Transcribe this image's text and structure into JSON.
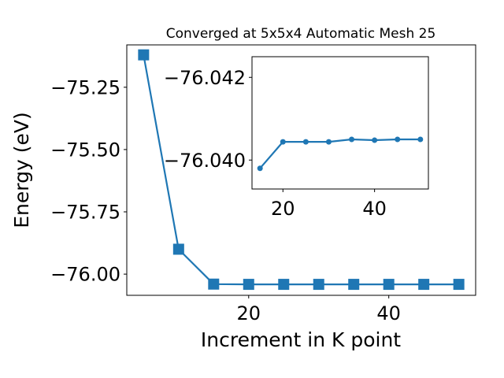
{
  "chart_data": [
    {
      "type": "line",
      "title": "Converged at 5x5x4 Automatic Mesh 25",
      "xlabel": "Increment in K point",
      "ylabel": "Energy (eV)",
      "xlim": [
        2.6,
        52.4
      ],
      "ylim": [
        -76.085,
        -75.08
      ],
      "xticks": [
        20,
        40
      ],
      "xtick_labels": [
        "20",
        "40"
      ],
      "yticks": [
        -76.0,
        -75.75,
        -75.5,
        -75.25
      ],
      "ytick_labels": [
        "−76.00",
        "−75.75",
        "−75.50",
        "−75.25"
      ],
      "grid": false,
      "series": [
        {
          "marker": "square",
          "color": "#1f77b4",
          "x": [
            5,
            10,
            15,
            20,
            25,
            30,
            35,
            40,
            45,
            50
          ],
          "y": [
            -75.12,
            -75.9,
            -76.04,
            -76.041,
            -76.041,
            -76.041,
            -76.041,
            -76.041,
            -76.041,
            -76.041
          ]
        }
      ]
    },
    {
      "type": "line",
      "title": "",
      "xlabel": "",
      "ylabel": "",
      "xlim": [
        13.25,
        51.75
      ],
      "ylim": [
        -76.0393,
        -76.0425
      ],
      "xticks": [
        20,
        40
      ],
      "xtick_labels": [
        "20",
        "40"
      ],
      "yticks": [
        -76.04,
        -76.042
      ],
      "ytick_labels": [
        "−76.040",
        "−76.042"
      ],
      "grid": false,
      "series": [
        {
          "marker": "circle",
          "color": "#1f77b4",
          "x": [
            15,
            20,
            25,
            30,
            35,
            40,
            45,
            50
          ],
          "y": [
            -76.0398,
            -76.04044,
            -76.04044,
            -76.04044,
            -76.0405,
            -76.04048,
            -76.0405,
            -76.0405
          ]
        }
      ]
    }
  ]
}
